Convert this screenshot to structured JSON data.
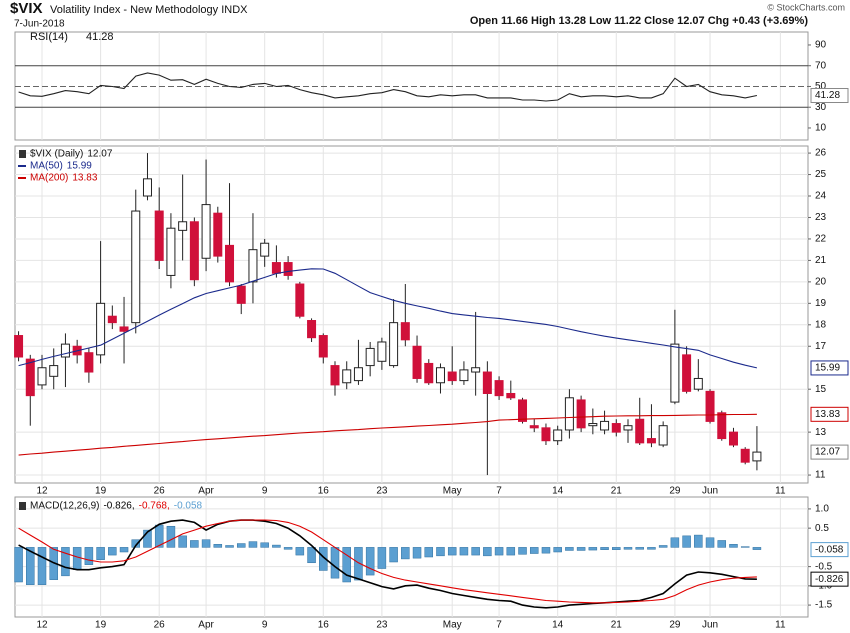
{
  "header": {
    "symbol": "$VIX",
    "name": "Volatility Index - New Methodology INDX",
    "date": "7-Jun-2018",
    "quote": "Open 11.66  High 13.28  Low 11.22  Close 12.07  Chg +0.43 (+3.69%)",
    "copyright": "© StockCharts.com"
  },
  "chart_data": [
    {
      "type": "line",
      "ylim": [
        -1.6,
        102.5
      ],
      "yticks": [
        10,
        30,
        50,
        70,
        90
      ],
      "series": [
        {
          "name": "RSI(14)",
          "color": "#222222",
          "values": [
            44.7,
            41,
            40.5,
            43,
            46,
            45,
            43,
            51,
            50,
            48,
            60,
            63,
            61,
            56,
            56.5,
            52,
            57,
            53,
            50,
            49,
            52,
            53,
            50,
            51,
            47,
            44,
            42,
            39,
            40,
            41,
            43,
            44,
            47,
            45,
            41,
            40,
            42,
            41,
            42,
            42,
            39,
            39,
            39,
            37,
            37,
            36,
            37,
            43,
            40,
            41,
            41,
            40,
            41,
            39,
            39,
            43,
            58,
            50,
            52,
            45,
            42,
            41,
            39,
            41.28,
            null,
            null
          ]
        }
      ]
    },
    {
      "type": "candlestick",
      "grid": true,
      "categories": [
        null,
        null,
        "12",
        null,
        null,
        null,
        null,
        "19",
        null,
        null,
        null,
        null,
        "26",
        null,
        null,
        null,
        "Apr",
        null,
        null,
        null,
        null,
        "9",
        null,
        null,
        null,
        null,
        "16",
        null,
        null,
        null,
        null,
        "23",
        null,
        null,
        null,
        null,
        null,
        "May",
        null,
        null,
        null,
        "7",
        null,
        null,
        null,
        null,
        "14",
        null,
        null,
        null,
        null,
        "21",
        null,
        null,
        null,
        null,
        "29",
        null,
        null,
        "Jun",
        null,
        null,
        null,
        null,
        null,
        "11"
      ],
      "ylim": [
        10.63,
        26.33
      ],
      "yticks": [
        11,
        13,
        15,
        17,
        18,
        19,
        20,
        21,
        22,
        23,
        24,
        25,
        26
      ],
      "series": [
        {
          "name": "$VIX (Daily)",
          "type": "candlestick",
          "up_color": "#ffffff",
          "down_color": "#d0103a",
          "open": [
            17.5,
            16.4,
            15.2,
            15.6,
            16.5,
            17.0,
            16.7,
            16.6,
            18.4,
            17.9,
            18.1,
            24.0,
            23.3,
            20.3,
            22.4,
            22.8,
            21.1,
            23.2,
            21.7,
            19.8,
            20.0,
            21.2,
            20.9,
            20.9,
            19.9,
            18.2,
            17.5,
            16.1,
            15.3,
            15.4,
            16.1,
            16.3,
            16.1,
            18.1,
            17.0,
            16.2,
            15.3,
            15.8,
            15.4,
            15.8,
            15.8,
            15.4,
            14.8,
            14.5,
            13.3,
            13.2,
            12.6,
            13.1,
            14.5,
            13.3,
            13.1,
            13.4,
            13.1,
            13.6,
            12.7,
            12.4,
            14.4,
            16.6,
            15.0,
            14.9,
            13.9,
            13.0,
            12.2,
            11.66,
            null,
            null
          ],
          "high": [
            17.7,
            16.6,
            16.6,
            16.9,
            17.6,
            17.3,
            16.9,
            21.9,
            18.9,
            19.3,
            24.3,
            26.0,
            24.4,
            23.2,
            25.0,
            23.0,
            25.7,
            23.5,
            24.6,
            19.9,
            23.2,
            22.0,
            21.7,
            21.2,
            20.0,
            18.3,
            17.6,
            16.3,
            16.3,
            17.3,
            17.2,
            17.4,
            19.2,
            19.9,
            17.5,
            16.4,
            16.2,
            17.0,
            16.3,
            18.6,
            16.3,
            15.6,
            15.4,
            14.6,
            13.6,
            13.4,
            13.3,
            15.0,
            14.7,
            14.1,
            14.0,
            13.6,
            13.6,
            14.6,
            14.3,
            13.5,
            18.7,
            17.0,
            16.4,
            15.0,
            14.0,
            13.2,
            12.3,
            13.28,
            null,
            null
          ],
          "low": [
            16.3,
            13.3,
            15.0,
            15.0,
            15.1,
            16.2,
            15.3,
            16.2,
            17.8,
            16.2,
            17.6,
            23.8,
            20.6,
            19.7,
            21.0,
            19.8,
            20.5,
            20.9,
            19.8,
            18.5,
            19.0,
            20.7,
            20.2,
            20.1,
            18.3,
            17.2,
            16.2,
            14.7,
            15.0,
            15.2,
            15.6,
            15.9,
            16.0,
            17.0,
            15.3,
            15.2,
            14.8,
            15.2,
            15.2,
            14.7,
            11.0,
            14.5,
            14.5,
            13.4,
            13.0,
            12.4,
            12.4,
            12.7,
            13.0,
            12.9,
            12.9,
            12.8,
            12.5,
            12.4,
            12.3,
            12.3,
            14.3,
            14.8,
            14.9,
            13.4,
            12.6,
            12.3,
            11.5,
            11.22,
            null,
            null
          ],
          "close": [
            16.5,
            14.7,
            16.0,
            16.1,
            17.1,
            16.6,
            15.8,
            19.0,
            18.1,
            17.7,
            23.3,
            24.8,
            21.0,
            22.5,
            22.8,
            20.1,
            23.6,
            21.2,
            20.0,
            19.0,
            21.5,
            21.8,
            20.4,
            20.3,
            18.4,
            17.4,
            16.5,
            15.2,
            15.9,
            16.0,
            16.9,
            17.2,
            18.1,
            17.3,
            15.5,
            15.3,
            16.0,
            15.4,
            15.9,
            16.0,
            14.8,
            14.7,
            14.6,
            13.5,
            13.2,
            12.6,
            13.1,
            14.6,
            13.2,
            13.4,
            13.5,
            13.0,
            13.3,
            12.5,
            12.5,
            13.3,
            17.1,
            14.9,
            15.5,
            13.5,
            12.7,
            12.4,
            11.6,
            12.07,
            null,
            null
          ]
        },
        {
          "name": "MA(50)",
          "color": "#1b2a8c",
          "values": [
            16.1,
            16.24,
            16.39,
            16.53,
            16.66,
            16.79,
            16.92,
            17.05,
            17.33,
            17.61,
            17.89,
            18.17,
            18.45,
            18.72,
            18.99,
            19.26,
            19.46,
            19.59,
            19.72,
            19.85,
            20.03,
            20.21,
            20.39,
            20.49,
            20.55,
            20.61,
            20.6,
            20.4,
            20.1,
            19.8,
            19.5,
            19.32,
            19.14,
            19.0,
            18.88,
            18.77,
            18.64,
            18.52,
            18.46,
            18.4,
            18.34,
            18.3,
            18.23,
            18.16,
            18.09,
            18.02,
            17.92,
            17.8,
            17.68,
            17.57,
            17.47,
            17.38,
            17.3,
            17.22,
            17.14,
            17.06,
            16.97,
            16.89,
            16.81,
            16.6,
            16.43,
            16.26,
            16.12,
            15.99,
            null,
            null
          ]
        },
        {
          "name": "MA(200)",
          "color": "#cc0000",
          "values": [
            11.93,
            11.98,
            12.02,
            12.07,
            12.11,
            12.16,
            12.2,
            12.25,
            12.29,
            12.34,
            12.38,
            12.43,
            12.47,
            12.52,
            12.56,
            12.61,
            12.65,
            12.69,
            12.73,
            12.77,
            12.81,
            12.84,
            12.88,
            12.92,
            12.96,
            12.99,
            13.02,
            13.06,
            13.09,
            13.12,
            13.16,
            13.19,
            13.22,
            13.25,
            13.28,
            13.31,
            13.34,
            13.37,
            13.41,
            13.45,
            13.49,
            13.56,
            13.58,
            13.6,
            13.62,
            13.64,
            13.66,
            13.68,
            13.7,
            13.72,
            13.74,
            13.75,
            13.76,
            13.76,
            13.77,
            13.77,
            13.78,
            13.79,
            13.8,
            13.8,
            13.81,
            13.82,
            13.82,
            13.83,
            null,
            null
          ]
        }
      ]
    },
    {
      "type": "macd",
      "ylim": [
        -1.81,
        1.31
      ],
      "yticks": [
        {
          "value": 1,
          "label": "1.0"
        },
        0.5,
        -0.5,
        {
          "value": -1,
          "label": "-1.0"
        },
        -1.5
      ],
      "legend_values": [
        "-0.826,",
        "-0.768,",
        "-0.058"
      ],
      "series": [
        {
          "name": "MACD(12,26,9)",
          "color": "#000000",
          "values": [
            0.06,
            -0.1,
            -0.25,
            -0.4,
            -0.52,
            -0.58,
            -0.58,
            -0.53,
            -0.5,
            -0.45,
            0.05,
            0.4,
            0.6,
            0.68,
            0.71,
            0.65,
            0.45,
            0.6,
            0.68,
            0.71,
            0.71,
            0.68,
            0.62,
            0.5,
            0.3,
            0.05,
            -0.25,
            -0.5,
            -0.72,
            -0.82,
            -0.92,
            -1.02,
            -1.08,
            -1.0,
            -0.98,
            -1.06,
            -1.12,
            -1.2,
            -1.25,
            -1.3,
            -1.35,
            -1.38,
            -1.4,
            -1.5,
            -1.55,
            -1.57,
            -1.55,
            -1.5,
            -1.48,
            -1.46,
            -1.44,
            -1.42,
            -1.4,
            -1.38,
            -1.3,
            -1.2,
            -0.95,
            -0.72,
            -0.64,
            -0.66,
            -0.7,
            -0.76,
            -0.82,
            -0.826,
            null,
            null
          ]
        },
        {
          "color": "#e00000",
          "values": [
            0.5,
            0.32,
            0.14,
            -0.05,
            -0.15,
            -0.25,
            -0.33,
            -0.38,
            -0.38,
            -0.35,
            -0.25,
            -0.1,
            0.05,
            0.2,
            0.35,
            0.45,
            0.55,
            0.62,
            0.68,
            0.71,
            0.71,
            0.71,
            0.7,
            0.65,
            0.55,
            0.4,
            0.2,
            0.0,
            -0.2,
            -0.4,
            -0.55,
            -0.68,
            -0.78,
            -0.85,
            -0.9,
            -0.95,
            -1.0,
            -1.05,
            -1.1,
            -1.14,
            -1.18,
            -1.22,
            -1.26,
            -1.3,
            -1.34,
            -1.38,
            -1.4,
            -1.42,
            -1.43,
            -1.44,
            -1.44,
            -1.43,
            -1.42,
            -1.4,
            -1.38,
            -1.35,
            -1.25,
            -1.1,
            -0.98,
            -0.9,
            -0.84,
            -0.8,
            -0.78,
            -0.768,
            null,
            null
          ]
        },
        {
          "type": "bar",
          "color": "#5b9fd1",
          "values": [
            -0.9,
            -0.97,
            -0.97,
            -0.84,
            -0.74,
            -0.58,
            -0.45,
            -0.32,
            -0.2,
            -0.12,
            0.2,
            0.45,
            0.58,
            0.55,
            0.3,
            0.18,
            0.2,
            0.08,
            0.05,
            0.1,
            0.15,
            0.12,
            0.06,
            -0.05,
            -0.2,
            -0.4,
            -0.6,
            -0.8,
            -0.9,
            -0.85,
            -0.72,
            -0.55,
            -0.38,
            -0.3,
            -0.28,
            -0.25,
            -0.22,
            -0.2,
            -0.2,
            -0.2,
            -0.22,
            -0.2,
            -0.2,
            -0.18,
            -0.16,
            -0.15,
            -0.12,
            -0.08,
            -0.08,
            -0.07,
            -0.06,
            -0.06,
            -0.05,
            -0.05,
            -0.05,
            0.05,
            0.25,
            0.3,
            0.32,
            0.25,
            0.18,
            0.08,
            0.02,
            -0.058,
            null,
            null
          ]
        }
      ]
    }
  ]
}
